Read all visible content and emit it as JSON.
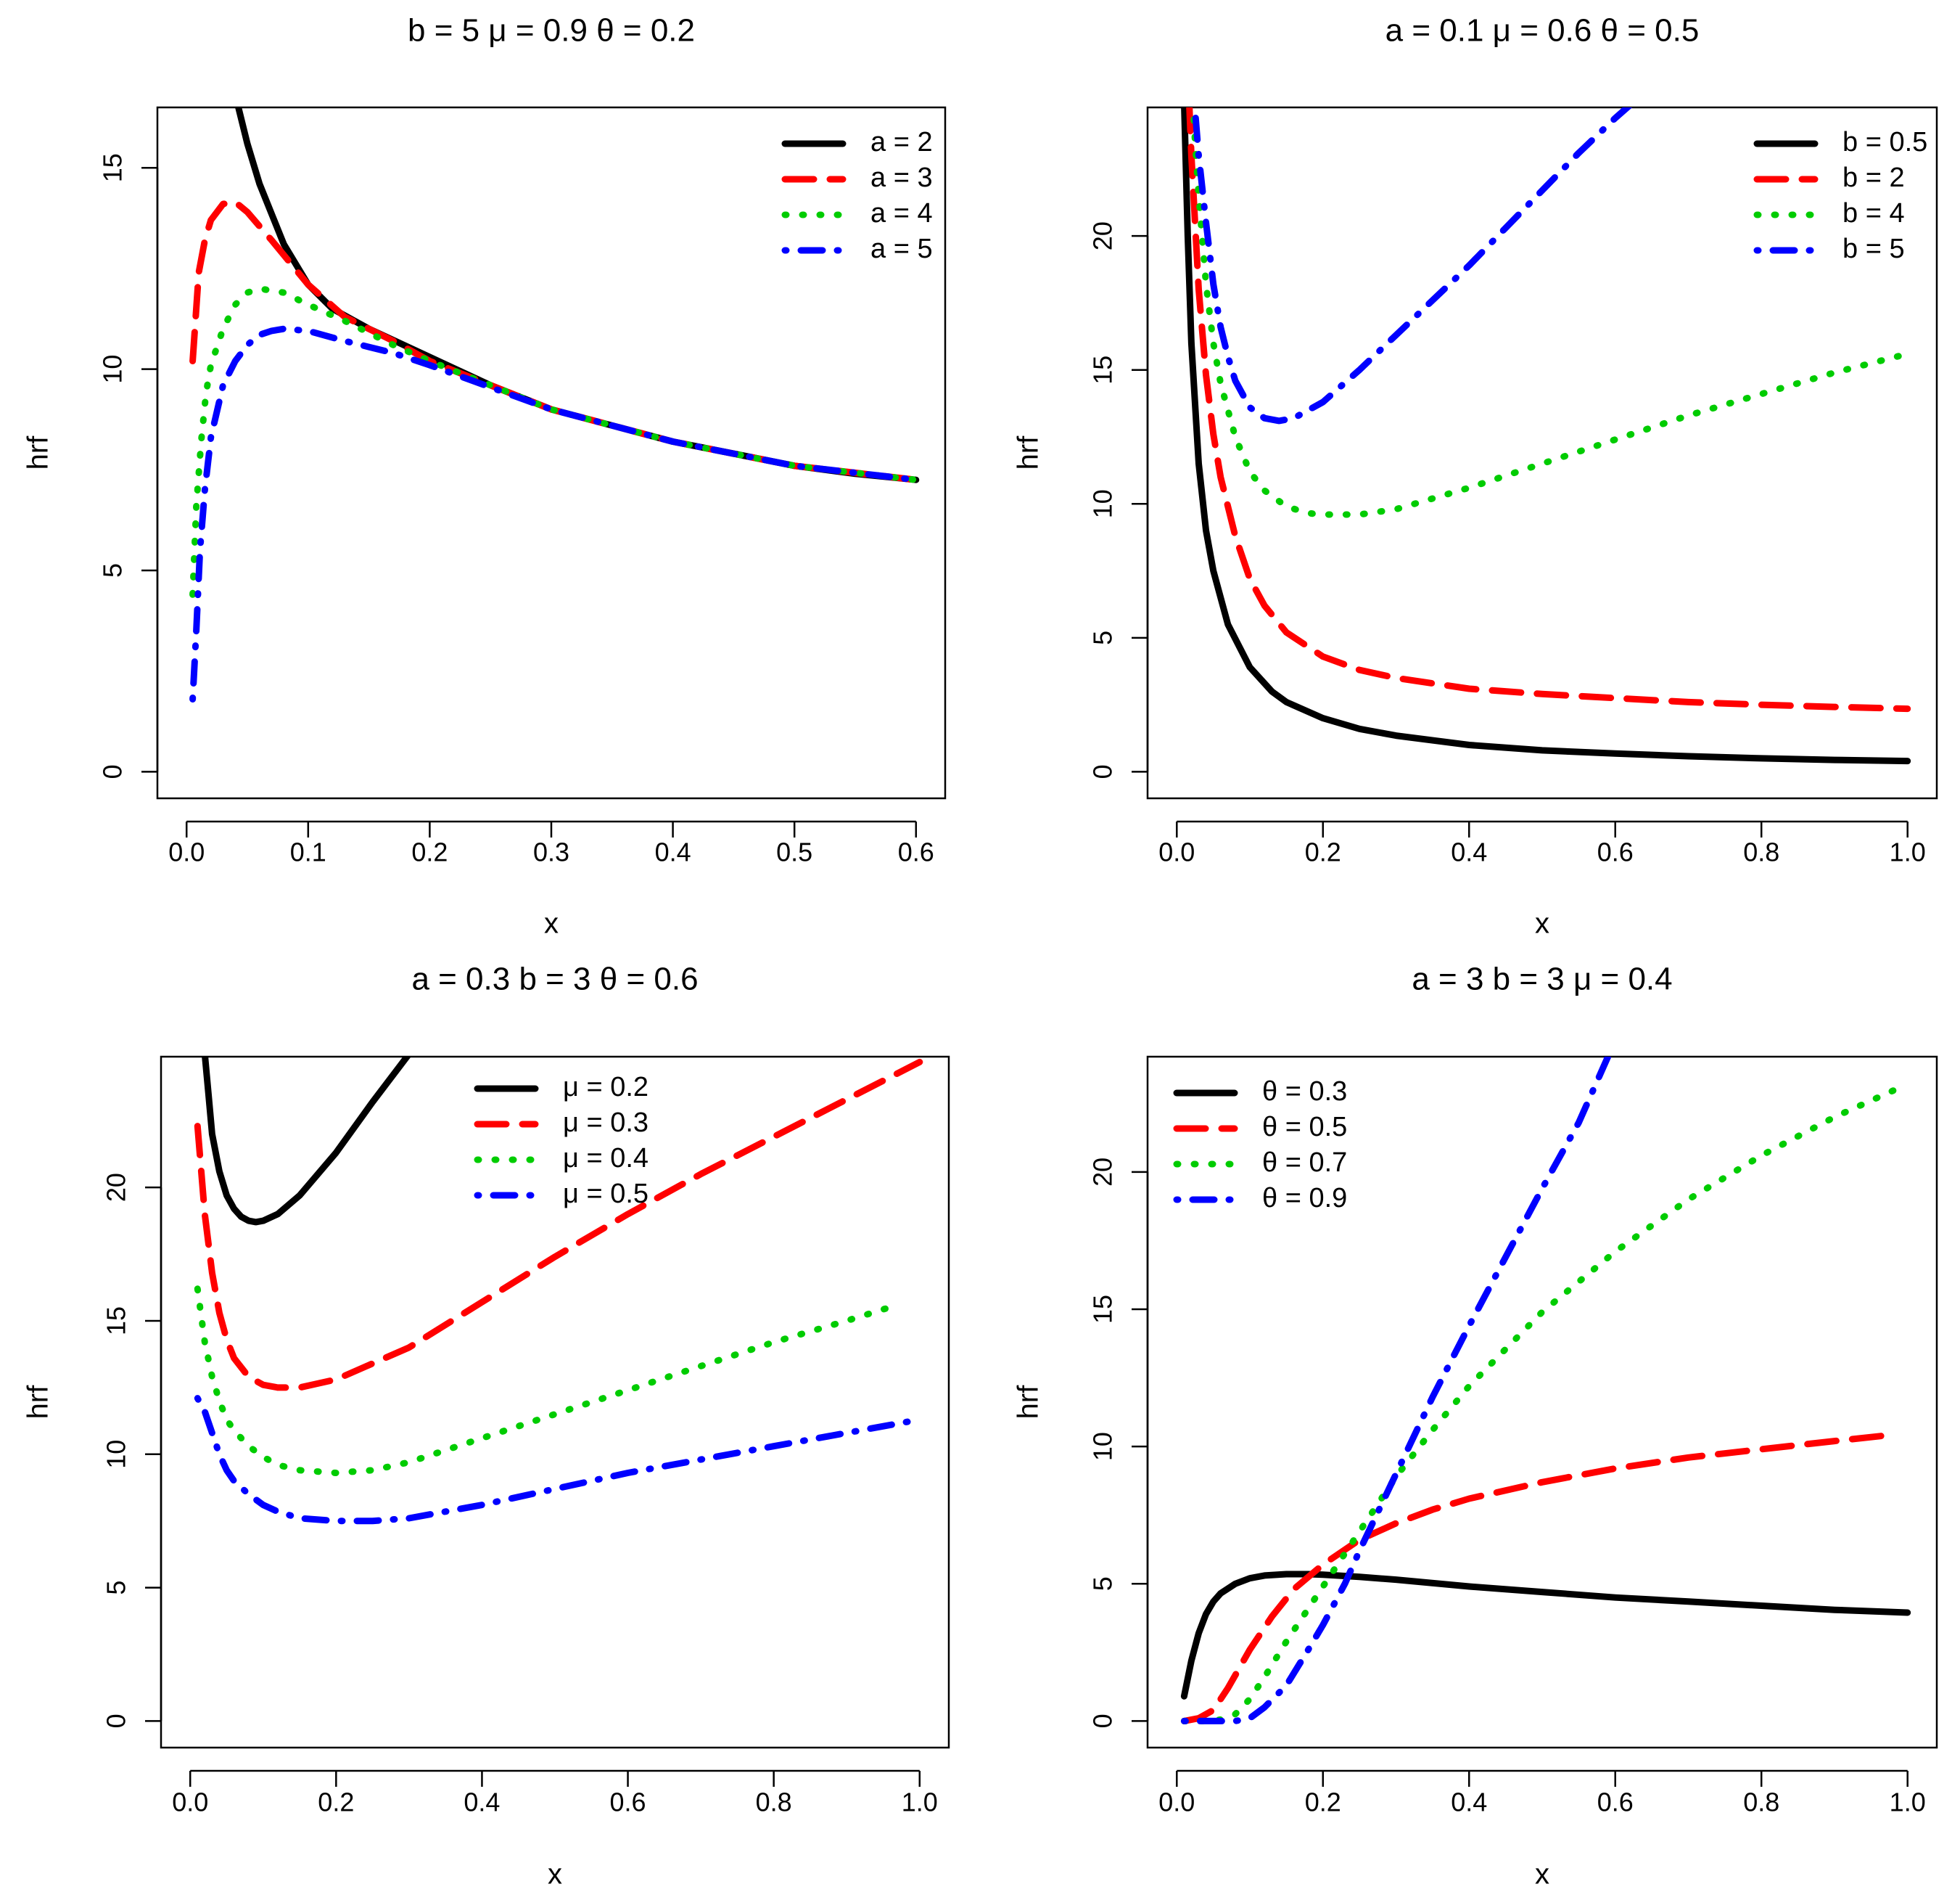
{
  "chart_data": [
    {
      "type": "line",
      "title": "b = 5  μ = 0.9  θ = 0.2",
      "xlabel": "x",
      "ylabel": "hrf",
      "xlim": [
        0.0,
        0.6
      ],
      "ylim": [
        0,
        16.5
      ],
      "xticks": [
        0.0,
        0.1,
        0.2,
        0.3,
        0.4,
        0.5,
        0.6
      ],
      "xtick_labels": [
        "0.0",
        "0.1",
        "0.2",
        "0.3",
        "0.4",
        "0.5",
        "0.6"
      ],
      "yticks": [
        0,
        5,
        10,
        15
      ],
      "ytick_labels": [
        "0",
        "5",
        "10",
        "15"
      ],
      "legend_position": "top-right",
      "series": [
        {
          "name": "a = 2",
          "color": "#000000",
          "style": "solid",
          "x": [
            0.041,
            0.05,
            0.06,
            0.08,
            0.1,
            0.12,
            0.15,
            0.2,
            0.25,
            0.3,
            0.35,
            0.4,
            0.45,
            0.5,
            0.55,
            0.6
          ],
          "y": [
            16.7,
            15.6,
            14.6,
            13.1,
            12.1,
            11.5,
            11.0,
            10.3,
            9.6,
            9.0,
            8.6,
            8.2,
            7.9,
            7.6,
            7.4,
            7.25
          ]
        },
        {
          "name": "a = 3",
          "color": "#ff0000",
          "style": "dashed",
          "x": [
            0.005,
            0.01,
            0.015,
            0.02,
            0.03,
            0.04,
            0.05,
            0.07,
            0.1,
            0.13,
            0.17,
            0.2,
            0.3,
            0.4,
            0.5,
            0.6
          ],
          "y": [
            10.2,
            12.4,
            13.2,
            13.7,
            14.1,
            14.15,
            13.9,
            13.2,
            12.1,
            11.3,
            10.7,
            10.2,
            9.0,
            8.2,
            7.6,
            7.25
          ]
        },
        {
          "name": "a = 4",
          "color": "#00cc00",
          "style": "dotted",
          "x": [
            0.005,
            0.008,
            0.012,
            0.016,
            0.02,
            0.03,
            0.04,
            0.05,
            0.06,
            0.08,
            0.1,
            0.13,
            0.17,
            0.2,
            0.3,
            0.4,
            0.5,
            0.6
          ],
          "y": [
            4.4,
            6.6,
            8.2,
            9.4,
            10.1,
            11.0,
            11.6,
            11.9,
            12.0,
            11.9,
            11.6,
            11.2,
            10.6,
            10.2,
            9.0,
            8.2,
            7.6,
            7.25
          ]
        },
        {
          "name": "a = 5",
          "color": "#0000ff",
          "style": "dotdash",
          "x": [
            0.005,
            0.008,
            0.011,
            0.015,
            0.02,
            0.03,
            0.04,
            0.05,
            0.06,
            0.07,
            0.08,
            0.1,
            0.13,
            0.17,
            0.2,
            0.3,
            0.4,
            0.5,
            0.6
          ],
          "y": [
            1.8,
            3.5,
            5.5,
            7.0,
            8.3,
            9.6,
            10.2,
            10.6,
            10.85,
            10.95,
            11.0,
            10.95,
            10.7,
            10.4,
            10.1,
            9.0,
            8.2,
            7.6,
            7.25
          ]
        }
      ]
    },
    {
      "type": "line",
      "title": "a = 0.1  μ = 0.6  θ = 0.5",
      "xlabel": "x",
      "ylabel": "hrf",
      "xlim": [
        0.0,
        1.0
      ],
      "ylim": [
        0,
        24.8
      ],
      "xticks": [
        0.0,
        0.2,
        0.4,
        0.6,
        0.8,
        1.0
      ],
      "xtick_labels": [
        "0.0",
        "0.2",
        "0.4",
        "0.6",
        "0.8",
        "1.0"
      ],
      "yticks": [
        0,
        5,
        10,
        15,
        20
      ],
      "ytick_labels": [
        "0",
        "5",
        "10",
        "15",
        "20"
      ],
      "legend_position": "top-right",
      "series": [
        {
          "name": "b = 0.5",
          "color": "#000000",
          "style": "solid",
          "x": [
            0.01,
            0.015,
            0.02,
            0.03,
            0.04,
            0.05,
            0.07,
            0.1,
            0.13,
            0.15,
            0.2,
            0.25,
            0.3,
            0.4,
            0.5,
            0.6,
            0.7,
            0.8,
            0.9,
            1.0
          ],
          "y": [
            25,
            20,
            16,
            11.5,
            9.0,
            7.5,
            5.5,
            3.9,
            3.0,
            2.6,
            2.0,
            1.6,
            1.35,
            1.0,
            0.8,
            0.68,
            0.58,
            0.5,
            0.44,
            0.4
          ]
        },
        {
          "name": "b = 2",
          "color": "#ff0000",
          "style": "dashed",
          "x": [
            0.017,
            0.02,
            0.03,
            0.04,
            0.05,
            0.06,
            0.08,
            0.1,
            0.12,
            0.15,
            0.2,
            0.25,
            0.3,
            0.4,
            0.5,
            0.6,
            0.7,
            0.8,
            0.9,
            1.0
          ],
          "y": [
            25,
            23,
            18,
            14.8,
            12.6,
            11.0,
            8.8,
            7.2,
            6.2,
            5.2,
            4.3,
            3.8,
            3.5,
            3.1,
            2.9,
            2.75,
            2.6,
            2.5,
            2.42,
            2.35
          ]
        },
        {
          "name": "b = 4",
          "color": "#00cc00",
          "style": "dotted",
          "x": [
            0.022,
            0.025,
            0.03,
            0.04,
            0.05,
            0.06,
            0.08,
            0.1,
            0.12,
            0.15,
            0.18,
            0.2,
            0.25,
            0.3,
            0.4,
            0.5,
            0.6,
            0.7,
            0.8,
            0.9,
            1.0
          ],
          "y": [
            25,
            23.5,
            21.5,
            18.2,
            16.0,
            14.5,
            12.5,
            11.2,
            10.5,
            9.9,
            9.65,
            9.6,
            9.6,
            9.8,
            10.6,
            11.5,
            12.4,
            13.3,
            14.1,
            14.9,
            15.6
          ]
        },
        {
          "name": "b = 5",
          "color": "#0000ff",
          "style": "dotdash",
          "x": [
            0.024,
            0.03,
            0.04,
            0.05,
            0.06,
            0.07,
            0.08,
            0.1,
            0.12,
            0.14,
            0.16,
            0.2,
            0.25,
            0.3,
            0.35,
            0.4,
            0.45,
            0.5,
            0.55,
            0.6,
            0.625
          ],
          "y": [
            25,
            23.0,
            20.5,
            18.2,
            16.6,
            15.5,
            14.6,
            13.6,
            13.2,
            13.1,
            13.2,
            13.8,
            15.0,
            16.3,
            17.6,
            18.9,
            20.3,
            21.7,
            23.1,
            24.4,
            25
          ]
        }
      ]
    },
    {
      "type": "line",
      "title": "a = 0.3  b = 3  θ = 0.6",
      "xlabel": "x",
      "ylabel": "hrf",
      "xlim": [
        0.0,
        1.0
      ],
      "ylim": [
        0,
        24.9
      ],
      "xticks": [
        0.0,
        0.2,
        0.4,
        0.6,
        0.8,
        1.0
      ],
      "xtick_labels": [
        "0.0",
        "0.2",
        "0.4",
        "0.6",
        "0.8",
        "1.0"
      ],
      "yticks": [
        0,
        5,
        10,
        15,
        20
      ],
      "ytick_labels": [
        "0",
        "5",
        "10",
        "15",
        "20"
      ],
      "legend_position": "top-center",
      "series": [
        {
          "name": "μ = 0.2",
          "color": "#000000",
          "style": "solid",
          "x": [
            0.02,
            0.025,
            0.03,
            0.04,
            0.05,
            0.06,
            0.07,
            0.08,
            0.09,
            0.1,
            0.12,
            0.15,
            0.2,
            0.25,
            0.3,
            0.31
          ],
          "y": [
            25,
            23.5,
            22.0,
            20.6,
            19.7,
            19.2,
            18.9,
            18.75,
            18.7,
            18.75,
            19.0,
            19.7,
            21.3,
            23.2,
            25.0,
            25.2
          ]
        },
        {
          "name": "μ = 0.3",
          "color": "#ff0000",
          "style": "dashed",
          "x": [
            0.01,
            0.02,
            0.03,
            0.04,
            0.05,
            0.06,
            0.08,
            0.1,
            0.12,
            0.15,
            0.2,
            0.3,
            0.4,
            0.5,
            0.6,
            0.7,
            0.8,
            0.9,
            1.0
          ],
          "y": [
            22.3,
            19.0,
            16.8,
            15.3,
            14.3,
            13.6,
            12.9,
            12.6,
            12.5,
            12.5,
            12.8,
            14.0,
            15.7,
            17.4,
            19.0,
            20.5,
            21.9,
            23.3,
            24.7
          ]
        },
        {
          "name": "μ = 0.4",
          "color": "#00cc00",
          "style": "dotted",
          "x": [
            0.01,
            0.02,
            0.03,
            0.04,
            0.05,
            0.06,
            0.08,
            0.1,
            0.12,
            0.15,
            0.2,
            0.25,
            0.3,
            0.4,
            0.5,
            0.6,
            0.7,
            0.8,
            0.9,
            0.97
          ],
          "y": [
            16.2,
            14.2,
            12.9,
            12.0,
            11.3,
            10.9,
            10.3,
            9.9,
            9.6,
            9.4,
            9.3,
            9.4,
            9.7,
            10.6,
            11.5,
            12.4,
            13.3,
            14.2,
            15.0,
            15.6
          ]
        },
        {
          "name": "μ = 0.5",
          "color": "#0000ff",
          "style": "dotdash",
          "x": [
            0.01,
            0.02,
            0.03,
            0.04,
            0.05,
            0.06,
            0.08,
            0.1,
            0.12,
            0.15,
            0.2,
            0.25,
            0.3,
            0.4,
            0.5,
            0.6,
            0.7,
            0.8,
            0.9,
            1.0
          ],
          "y": [
            12.1,
            11.6,
            10.8,
            10.0,
            9.4,
            9.0,
            8.5,
            8.1,
            7.85,
            7.6,
            7.5,
            7.5,
            7.6,
            8.1,
            8.7,
            9.3,
            9.8,
            10.3,
            10.8,
            11.3
          ]
        }
      ]
    },
    {
      "type": "line",
      "title": "a = 3  b = 3  μ = 0.4",
      "xlabel": "x",
      "ylabel": "hrf",
      "xlim": [
        0.0,
        1.0
      ],
      "ylim": [
        0,
        24.2
      ],
      "xticks": [
        0.0,
        0.2,
        0.4,
        0.6,
        0.8,
        1.0
      ],
      "xtick_labels": [
        "0.0",
        "0.2",
        "0.4",
        "0.6",
        "0.8",
        "1.0"
      ],
      "yticks": [
        0,
        5,
        10,
        15,
        20
      ],
      "ytick_labels": [
        "0",
        "5",
        "10",
        "15",
        "20"
      ],
      "legend_position": "top-left",
      "series": [
        {
          "name": "θ = 0.3",
          "color": "#000000",
          "style": "solid",
          "x": [
            0.01,
            0.02,
            0.03,
            0.04,
            0.05,
            0.06,
            0.08,
            0.1,
            0.12,
            0.15,
            0.18,
            0.2,
            0.25,
            0.3,
            0.4,
            0.5,
            0.6,
            0.7,
            0.8,
            0.9,
            1.0
          ],
          "y": [
            0.9,
            2.2,
            3.2,
            3.9,
            4.35,
            4.65,
            5.0,
            5.2,
            5.3,
            5.35,
            5.35,
            5.33,
            5.25,
            5.15,
            4.9,
            4.7,
            4.5,
            4.35,
            4.2,
            4.05,
            3.95
          ]
        },
        {
          "name": "θ = 0.5",
          "color": "#ff0000",
          "style": "dashed",
          "x": [
            0.01,
            0.03,
            0.05,
            0.07,
            0.1,
            0.13,
            0.16,
            0.2,
            0.25,
            0.3,
            0.35,
            0.4,
            0.5,
            0.6,
            0.7,
            0.8,
            0.9,
            0.97
          ],
          "y": [
            0.0,
            0.1,
            0.4,
            1.2,
            2.6,
            3.8,
            4.8,
            5.7,
            6.6,
            7.2,
            7.7,
            8.1,
            8.7,
            9.2,
            9.6,
            9.9,
            10.2,
            10.4
          ]
        },
        {
          "name": "θ = 0.7",
          "color": "#00cc00",
          "style": "dotted",
          "x": [
            0.01,
            0.04,
            0.06,
            0.08,
            0.1,
            0.12,
            0.15,
            0.2,
            0.25,
            0.3,
            0.35,
            0.4,
            0.5,
            0.6,
            0.7,
            0.8,
            0.9,
            1.0
          ],
          "y": [
            0.0,
            0.0,
            0.05,
            0.25,
            0.8,
            1.6,
            2.9,
            4.9,
            6.9,
            8.9,
            10.6,
            12.2,
            14.9,
            17.1,
            19.0,
            20.6,
            22.0,
            23.2
          ]
        },
        {
          "name": "θ = 0.9",
          "color": "#0000ff",
          "style": "dotdash",
          "x": [
            0.01,
            0.05,
            0.08,
            0.1,
            0.12,
            0.15,
            0.18,
            0.2,
            0.23,
            0.25,
            0.3,
            0.35,
            0.4,
            0.45,
            0.5,
            0.55,
            0.59
          ],
          "y": [
            0.0,
            0.0,
            0.0,
            0.1,
            0.5,
            1.3,
            2.6,
            3.5,
            5.0,
            6.2,
            9.0,
            11.8,
            14.4,
            16.9,
            19.4,
            21.8,
            24.2
          ]
        }
      ]
    }
  ]
}
